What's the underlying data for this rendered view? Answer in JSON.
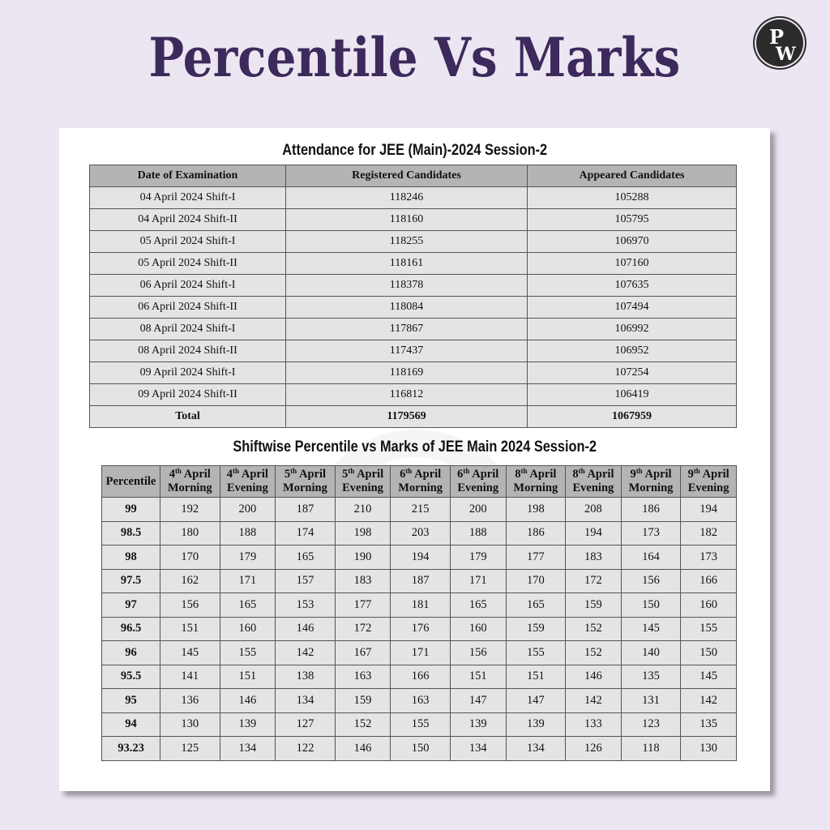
{
  "header": {
    "title": "Percentile Vs Marks",
    "logo_text": "PW",
    "title_color": "#3d2a5c",
    "background_color": "#ece6f2"
  },
  "attendance": {
    "title": "Attendance for JEE (Main)-2024 Session-2",
    "columns": [
      "Date of Examination",
      "Registered Candidates",
      "Appeared Candidates"
    ],
    "rows": [
      [
        "04 April 2024 Shift-I",
        "118246",
        "105288"
      ],
      [
        "04 April 2024 Shift-II",
        "118160",
        "105795"
      ],
      [
        "05 April 2024 Shift-I",
        "118255",
        "106970"
      ],
      [
        "05 April 2024 Shift-II",
        "118161",
        "107160"
      ],
      [
        "06 April 2024 Shift-I",
        "118378",
        "107635"
      ],
      [
        "06 April 2024 Shift-II",
        "118084",
        "107494"
      ],
      [
        "08 April 2024 Shift-I",
        "117867",
        "106992"
      ],
      [
        "08 April 2024 Shift-II",
        "117437",
        "106952"
      ],
      [
        "09 April 2024 Shift-I",
        "118169",
        "107254"
      ],
      [
        "09 April 2024 Shift-II",
        "116812",
        "106419"
      ]
    ],
    "total": [
      "Total",
      "1179569",
      "1067959"
    ]
  },
  "percentile_table": {
    "title": "Shiftwise Percentile vs Marks of JEE Main 2024 Session-2",
    "first_column": "Percentile",
    "columns": [
      {
        "day": "4",
        "suffix": "th",
        "month": "April",
        "shift": "Morning"
      },
      {
        "day": "4",
        "suffix": "th",
        "month": "April",
        "shift": "Evening"
      },
      {
        "day": "5",
        "suffix": "th",
        "month": "April",
        "shift": "Morning"
      },
      {
        "day": "5",
        "suffix": "th",
        "month": "April",
        "shift": "Evening"
      },
      {
        "day": "6",
        "suffix": "th",
        "month": "April",
        "shift": "Morning"
      },
      {
        "day": "6",
        "suffix": "th",
        "month": "April",
        "shift": "Evening"
      },
      {
        "day": "8",
        "suffix": "th",
        "month": "April",
        "shift": "Morning"
      },
      {
        "day": "8",
        "suffix": "th",
        "month": "April",
        "shift": "Evening"
      },
      {
        "day": "9",
        "suffix": "th",
        "month": "April",
        "shift": "Morning"
      },
      {
        "day": "9",
        "suffix": "th",
        "month": "April",
        "shift": "Evening"
      }
    ],
    "rows": [
      [
        "99",
        "192",
        "200",
        "187",
        "210",
        "215",
        "200",
        "198",
        "208",
        "186",
        "194"
      ],
      [
        "98.5",
        "180",
        "188",
        "174",
        "198",
        "203",
        "188",
        "186",
        "194",
        "173",
        "182"
      ],
      [
        "98",
        "170",
        "179",
        "165",
        "190",
        "194",
        "179",
        "177",
        "183",
        "164",
        "173"
      ],
      [
        "97.5",
        "162",
        "171",
        "157",
        "183",
        "187",
        "171",
        "170",
        "172",
        "156",
        "166"
      ],
      [
        "97",
        "156",
        "165",
        "153",
        "177",
        "181",
        "165",
        "165",
        "159",
        "150",
        "160"
      ],
      [
        "96.5",
        "151",
        "160",
        "146",
        "172",
        "176",
        "160",
        "159",
        "152",
        "145",
        "155"
      ],
      [
        "96",
        "145",
        "155",
        "142",
        "167",
        "171",
        "156",
        "155",
        "152",
        "140",
        "150"
      ],
      [
        "95.5",
        "141",
        "151",
        "138",
        "163",
        "166",
        "151",
        "151",
        "146",
        "135",
        "145"
      ],
      [
        "95",
        "136",
        "146",
        "134",
        "159",
        "163",
        "147",
        "147",
        "142",
        "131",
        "142"
      ],
      [
        "94",
        "130",
        "139",
        "127",
        "152",
        "155",
        "139",
        "139",
        "133",
        "123",
        "135"
      ],
      [
        "93.23",
        "125",
        "134",
        "122",
        "146",
        "150",
        "134",
        "134",
        "126",
        "118",
        "130"
      ]
    ]
  }
}
